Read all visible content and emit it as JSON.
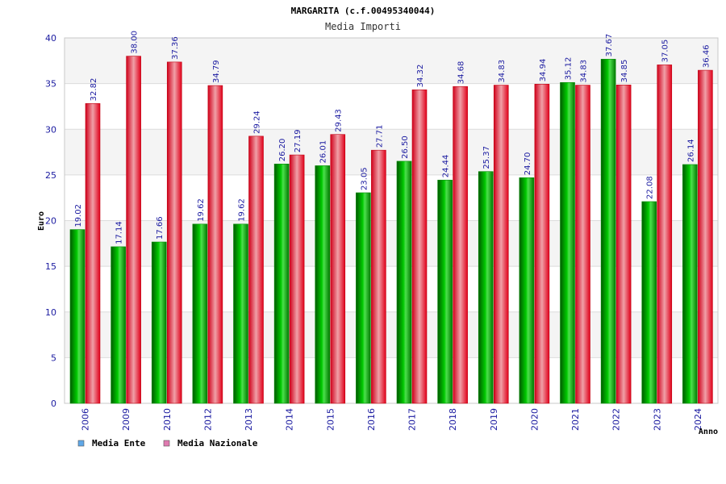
{
  "chart_data": {
    "type": "bar",
    "title": "MARGARITA (c.f.00495340044)",
    "subtitle": "Media Importi",
    "xlabel": "Anno",
    "ylabel": "Euro",
    "ylim": [
      0,
      40
    ],
    "yticks": [
      0,
      5,
      10,
      15,
      20,
      25,
      30,
      35,
      40
    ],
    "grid": true,
    "legend_position": "bottom-left",
    "categories": [
      "2006",
      "2009",
      "2010",
      "2012",
      "2013",
      "2014",
      "2015",
      "2016",
      "2017",
      "2018",
      "2019",
      "2020",
      "2021",
      "2022",
      "2023",
      "2024"
    ],
    "series": [
      {
        "name": "Media Ente",
        "color": "#00b000",
        "legend_color": "#5fa8e8",
        "values": [
          19.02,
          17.14,
          17.66,
          19.62,
          19.62,
          26.2,
          26.01,
          23.05,
          26.5,
          24.44,
          25.37,
          24.7,
          35.12,
          37.67,
          22.08,
          26.14
        ],
        "labels": [
          "19.02",
          "17.14",
          "17.66",
          "19.62",
          "19.62",
          "26.20",
          "26.01",
          "23.05",
          "26.50",
          "24.44",
          "25.37",
          "24.70",
          "35.12",
          "37.67",
          "22.08",
          "26.14"
        ]
      },
      {
        "name": "Media Nazionale",
        "color": "#e8101a",
        "legend_color": "#e07ab0",
        "values": [
          32.82,
          38.0,
          37.36,
          34.79,
          29.24,
          27.19,
          29.43,
          27.71,
          34.32,
          34.68,
          34.83,
          34.94,
          34.83,
          34.85,
          37.05,
          36.46
        ],
        "labels": [
          "32.82",
          "38.00",
          "37.36",
          "34.79",
          "29.24",
          "27.19",
          "29.43",
          "27.71",
          "34.32",
          "34.68",
          "34.83",
          "34.94",
          "34.83",
          "34.85",
          "37.05",
          "36.46"
        ]
      }
    ]
  }
}
